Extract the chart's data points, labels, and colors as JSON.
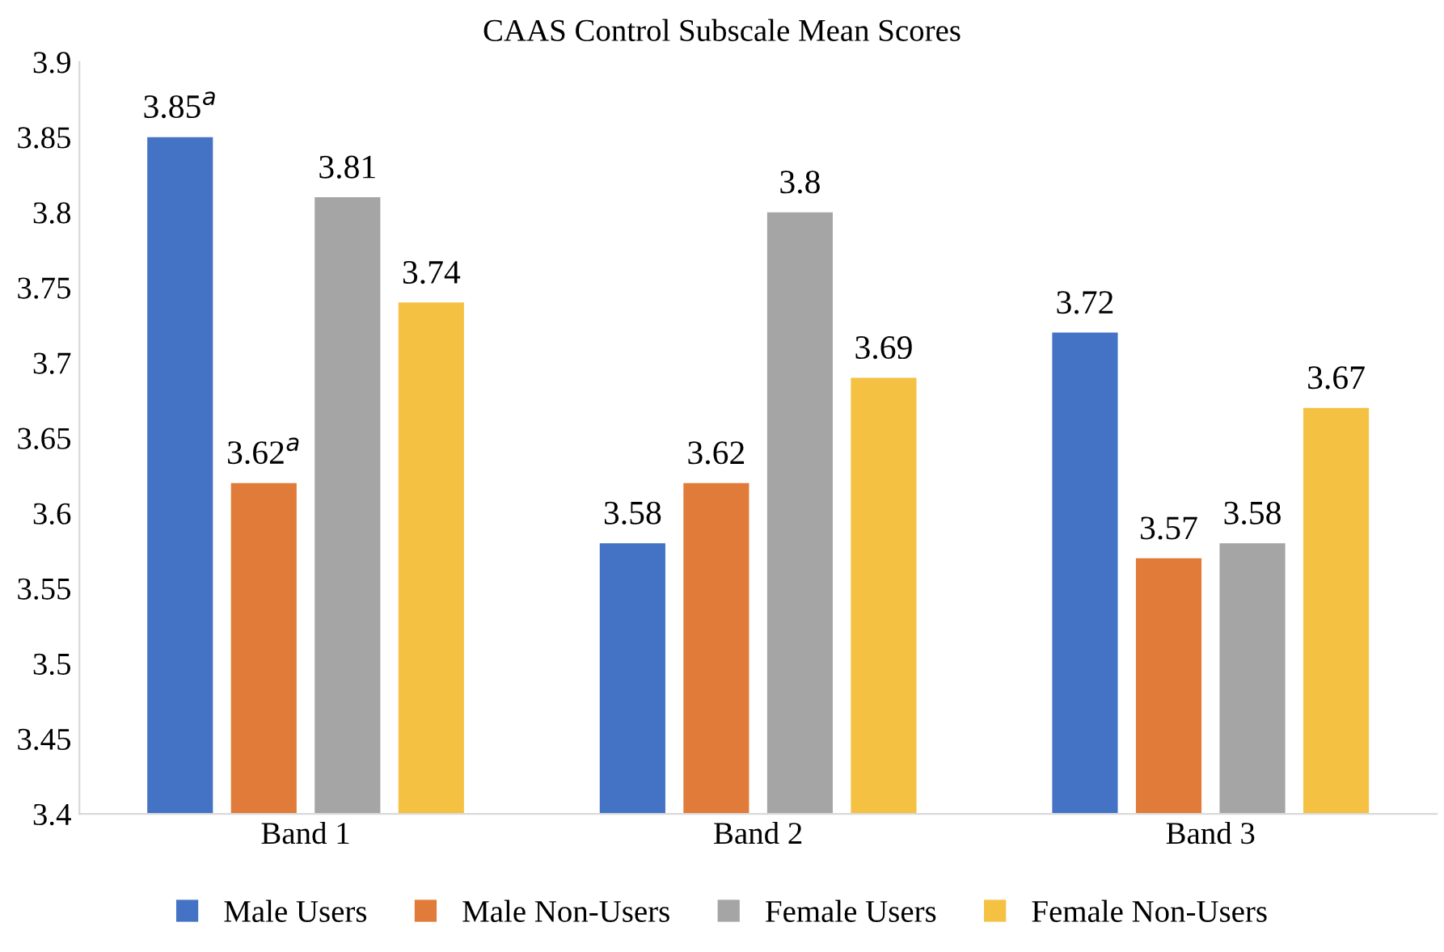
{
  "chart_data": {
    "type": "bar",
    "title": "CAAS Control Subscale Mean Scores",
    "categories": [
      "Band 1",
      "Band 2",
      "Band 3"
    ],
    "series": [
      {
        "name": "Male Users",
        "color": "#4472c4",
        "values": [
          3.85,
          3.58,
          3.72
        ],
        "value_labels": [
          "3.85$^{a}$",
          "3.58",
          "3.72"
        ]
      },
      {
        "name": "Male Non-Users",
        "color": "#e07b39",
        "values": [
          3.62,
          3.62,
          3.57
        ],
        "value_labels": [
          "3.62$^{a}$",
          "3.62",
          "3.57"
        ]
      },
      {
        "name": "Female Users",
        "color": "#a5a5a5",
        "values": [
          3.81,
          3.8,
          3.58
        ],
        "value_labels": [
          "3.81",
          "3.8",
          "3.58"
        ]
      },
      {
        "name": "Female Non-Users",
        "color": "#f4c142",
        "values": [
          3.74,
          3.69,
          3.67
        ],
        "value_labels": [
          "3.74",
          "3.69",
          "3.67"
        ]
      }
    ],
    "ylim": [
      3.4,
      3.9
    ],
    "yticks": [
      3.4,
      3.45,
      3.5,
      3.55,
      3.6,
      3.65,
      3.7,
      3.75,
      3.8,
      3.85,
      3.9
    ],
    "grid": false,
    "legend": "bottom"
  }
}
